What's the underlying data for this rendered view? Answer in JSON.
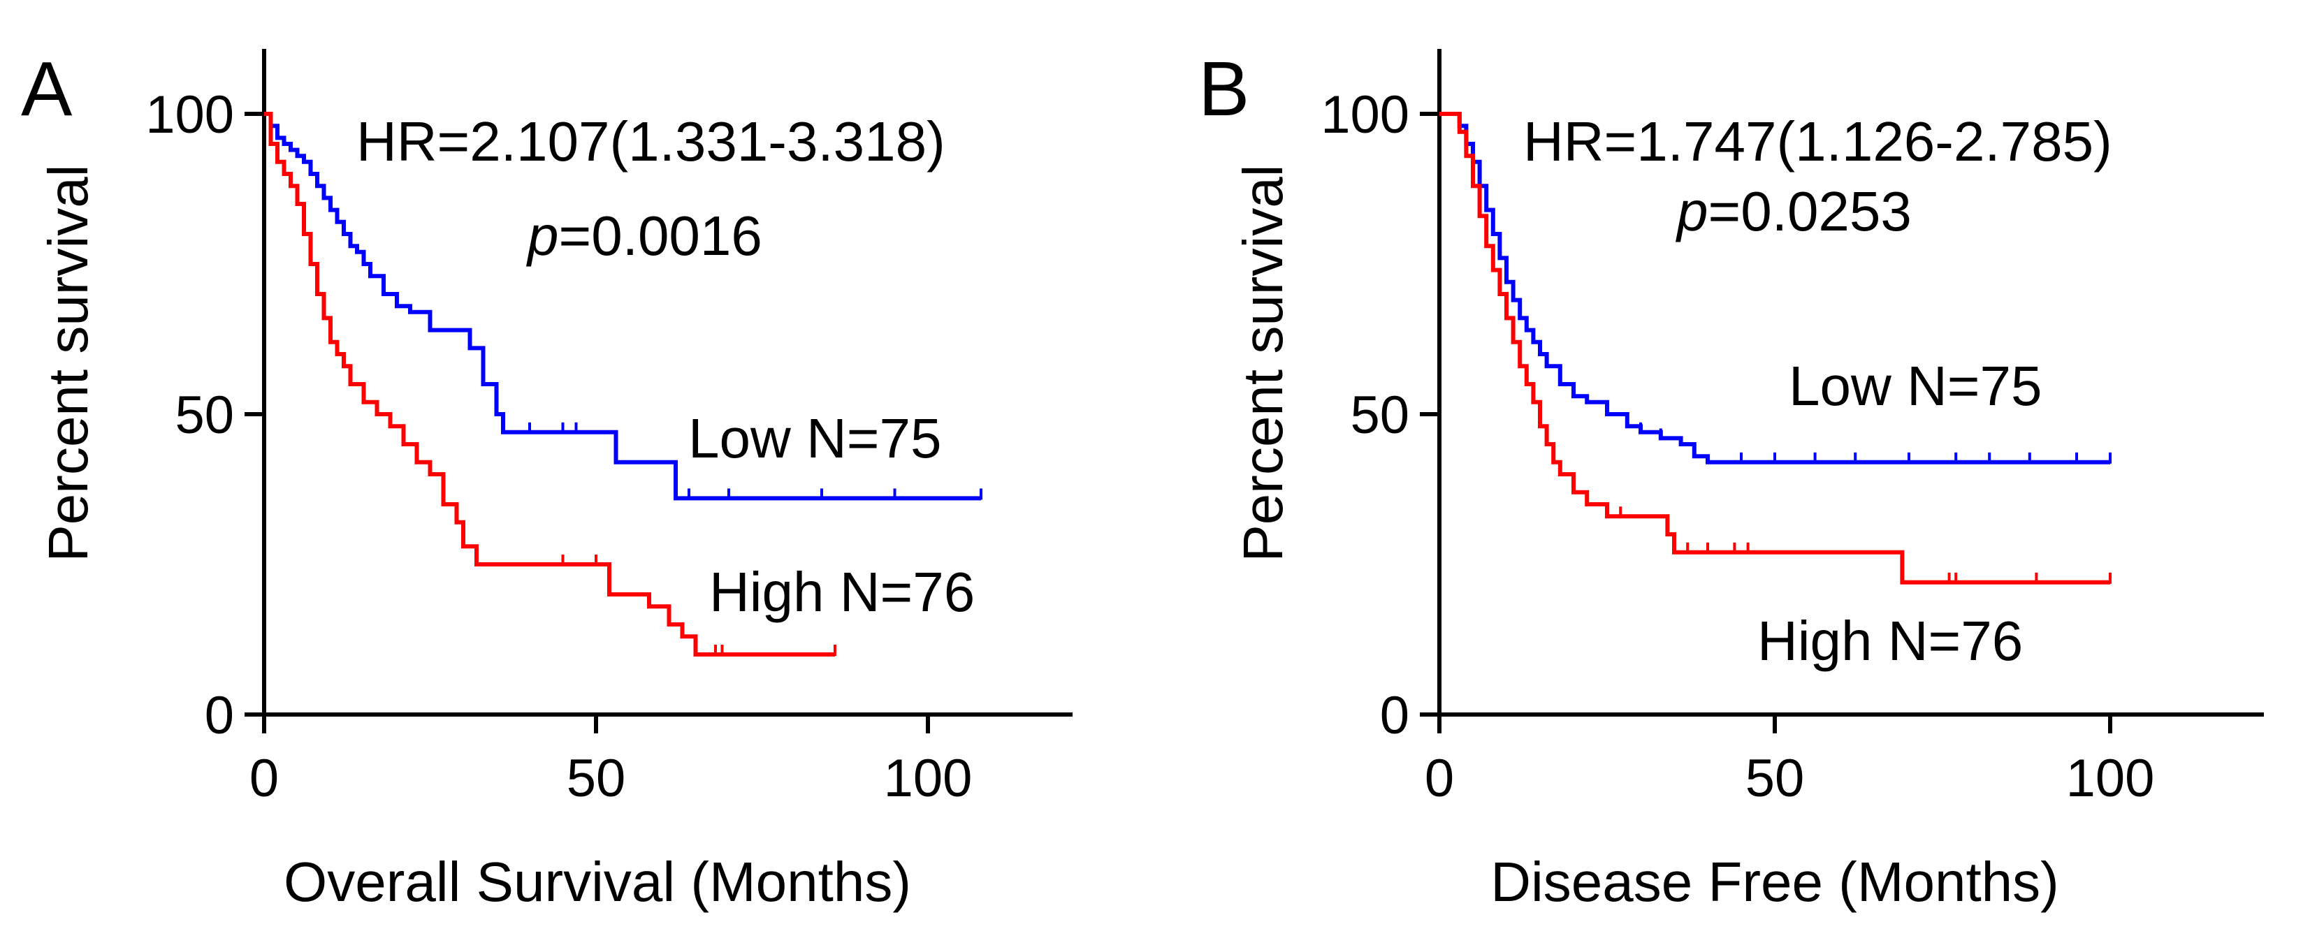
{
  "colors": {
    "low": "#0000ff",
    "high": "#ff0000",
    "axis": "#000000"
  },
  "chart_data": [
    {
      "type": "line",
      "panel": "A",
      "xlabel": "Overall Survival (Months)",
      "ylabel": "Percent survival",
      "xlim": [
        0,
        120
      ],
      "ylim": [
        0,
        110
      ],
      "xticks": [
        "0",
        "50",
        "100"
      ],
      "yticks": [
        "0",
        "50",
        "100"
      ],
      "grid": false,
      "annotations": {
        "hr_text": "HR=2.107(1.331-3.318)",
        "p_symbol": "p",
        "p_value": "=0.0016"
      },
      "series": [
        {
          "name": "Low N=75",
          "color": "#0000ff",
          "x": [
            0,
            1,
            2,
            3,
            4,
            5,
            6,
            7,
            8,
            9,
            10,
            11,
            12,
            13,
            14,
            15,
            16,
            18,
            20,
            22,
            25,
            28,
            31,
            33,
            35,
            36,
            40,
            45,
            50,
            53,
            62,
            108
          ],
          "y": [
            100,
            98,
            96,
            95,
            94,
            93,
            92,
            90,
            88,
            86,
            84,
            82,
            80,
            78,
            77,
            75,
            73,
            70,
            68,
            67,
            64,
            64,
            61,
            55,
            50,
            47,
            47,
            47,
            47,
            42,
            36,
            36
          ],
          "censored": [
            [
              40,
              47
            ],
            [
              45,
              47
            ],
            [
              47,
              47
            ],
            [
              64,
              36
            ],
            [
              70,
              36
            ],
            [
              84,
              36
            ],
            [
              95,
              36
            ],
            [
              108,
              36
            ]
          ]
        },
        {
          "name": "High N=76",
          "color": "#ff0000",
          "x": [
            0,
            1,
            2,
            3,
            4,
            5,
            6,
            7,
            8,
            9,
            10,
            11,
            12,
            13,
            15,
            17,
            19,
            21,
            23,
            25,
            27,
            29,
            30,
            32,
            35,
            45,
            52,
            55,
            58,
            61,
            63,
            65,
            86
          ],
          "y": [
            100,
            95,
            92,
            90,
            88,
            85,
            80,
            75,
            70,
            66,
            62,
            60,
            58,
            55,
            52,
            50,
            48,
            45,
            42,
            40,
            35,
            32,
            28,
            25,
            25,
            25,
            20,
            20,
            18,
            15,
            13,
            10,
            10
          ],
          "censored": [
            [
              45,
              25
            ],
            [
              50,
              25
            ],
            [
              68,
              10
            ],
            [
              69,
              10
            ],
            [
              86,
              10
            ]
          ]
        }
      ]
    },
    {
      "type": "line",
      "panel": "B",
      "xlabel": "Disease Free (Months)",
      "ylabel": "Percent survival",
      "xlim": [
        0,
        125
      ],
      "ylim": [
        0,
        110
      ],
      "xticks": [
        "0",
        "50",
        "100"
      ],
      "yticks": [
        "0",
        "50",
        "100"
      ],
      "grid": false,
      "annotations": {
        "hr_text": "HR=1.747(1.126-2.785)",
        "p_symbol": "p",
        "p_value": "=0.0253"
      },
      "series": [
        {
          "name": "Low N=75",
          "color": "#0000ff",
          "x": [
            0,
            2,
            3,
            4,
            5,
            6,
            7,
            8,
            9,
            10,
            11,
            12,
            13,
            14,
            15,
            16,
            18,
            20,
            22,
            25,
            28,
            30,
            33,
            36,
            38,
            40,
            100
          ],
          "y": [
            100,
            100,
            98,
            95,
            92,
            88,
            84,
            80,
            76,
            72,
            69,
            66,
            64,
            62,
            60,
            58,
            55,
            53,
            52,
            50,
            48,
            47,
            46,
            45,
            43,
            42,
            42
          ],
          "censored": [
            [
              18,
              55
            ],
            [
              25,
              50
            ],
            [
              30,
              47
            ],
            [
              33,
              46
            ],
            [
              45,
              42
            ],
            [
              50,
              42
            ],
            [
              56,
              42
            ],
            [
              62,
              42
            ],
            [
              70,
              42
            ],
            [
              77,
              42
            ],
            [
              82,
              42
            ],
            [
              88,
              42
            ],
            [
              95,
              42
            ],
            [
              100,
              42
            ]
          ]
        },
        {
          "name": "High N=76",
          "color": "#ff0000",
          "x": [
            0,
            2,
            3,
            4,
            5,
            6,
            7,
            8,
            9,
            10,
            11,
            12,
            13,
            14,
            15,
            16,
            17,
            18,
            20,
            22,
            25,
            30,
            34,
            35,
            40,
            50,
            60,
            69,
            100
          ],
          "y": [
            100,
            100,
            97,
            93,
            88,
            83,
            78,
            74,
            70,
            66,
            62,
            58,
            55,
            52,
            48,
            45,
            42,
            40,
            37,
            35,
            33,
            33,
            30,
            27,
            27,
            27,
            27,
            22,
            22
          ],
          "censored": [
            [
              27,
              33
            ],
            [
              37,
              27
            ],
            [
              40,
              27
            ],
            [
              44,
              27
            ],
            [
              46,
              27
            ],
            [
              76,
              22
            ],
            [
              77,
              22
            ],
            [
              89,
              22
            ],
            [
              100,
              22
            ]
          ]
        }
      ]
    }
  ]
}
